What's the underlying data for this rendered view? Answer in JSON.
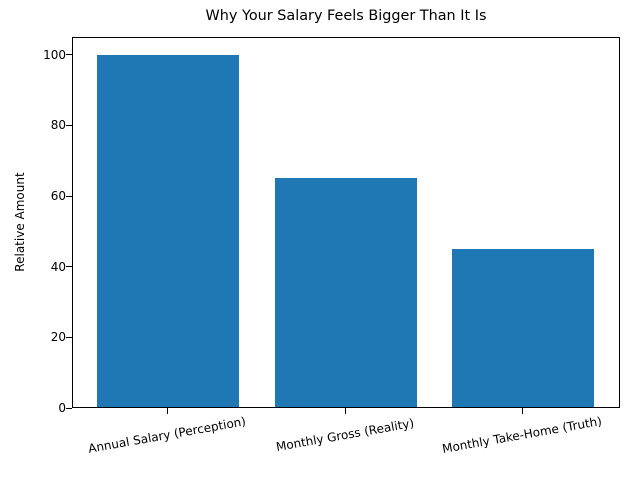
{
  "chart_data": {
    "type": "bar",
    "title": "Why Your Salary Feels Bigger Than It Is",
    "xlabel": "",
    "ylabel": "Relative Amount",
    "categories": [
      "Annual Salary (Perception)",
      "Monthly Gross (Reality)",
      "Monthly Take-Home (Truth)"
    ],
    "values": [
      100,
      65,
      45
    ],
    "ylim": [
      0,
      105
    ],
    "yticks": [
      0,
      20,
      40,
      60,
      80,
      100
    ],
    "grid": false,
    "legend": null,
    "bar_color": "#1f77b4",
    "xtick_rotation": 10
  }
}
